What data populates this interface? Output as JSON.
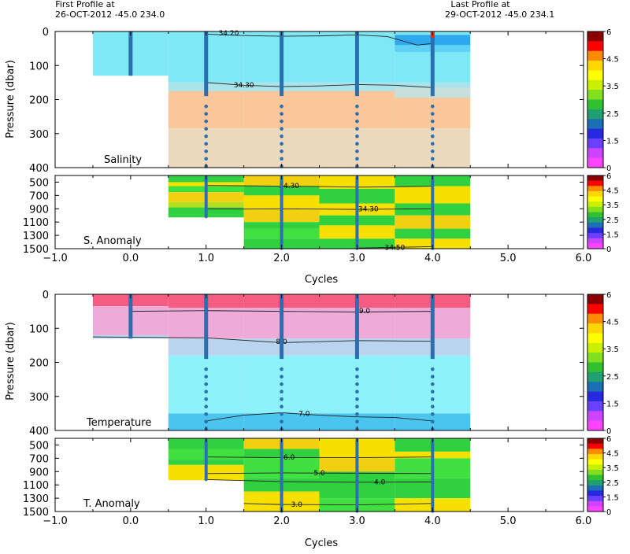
{
  "header": {
    "left_line1": "First Profile at",
    "left_line2": "26-OCT-2012    -45.0  234.0",
    "right_line1": "Last Profile at",
    "right_line2": "29-OCT-2012    -45.0  234.1"
  },
  "colorbar_ticks": [
    "6",
    "4.5",
    "3.5",
    "2.5",
    "1.5",
    "0"
  ],
  "colorbar_colors": [
    "#8b0000",
    "#ff0000",
    "#ff8c00",
    "#ffd700",
    "#ffff00",
    "#c8f000",
    "#80e020",
    "#30c030",
    "#20a070",
    "#1c6fb4",
    "#2828e0",
    "#6a40ff",
    "#cc44ff",
    "#ff44ff"
  ],
  "chart_data": [
    {
      "type": "heatmap",
      "title": "Salinity",
      "ylabel": "Pressure (dbar)",
      "xlim": [
        -1,
        6
      ],
      "ylim": [
        0,
        400
      ],
      "ytick_labels": [
        "0",
        "100",
        "200",
        "300",
        "400"
      ],
      "profile_cycles": [
        0,
        1,
        2,
        3,
        4
      ],
      "profile_max_depth": [
        130,
        400,
        400,
        400,
        400
      ],
      "contours": [
        {
          "label": "34.20",
          "value": 34.2
        },
        {
          "label": "34.30",
          "value": 34.3
        }
      ]
    },
    {
      "type": "heatmap",
      "title": "S. Anomaly",
      "xlim": [
        -1,
        6
      ],
      "ylim": [
        400,
        1500
      ],
      "ytick_labels": [
        "500",
        "700",
        "900",
        "1100",
        "1300",
        "1500"
      ],
      "contours": [
        {
          "label": "34.30",
          "value": 34.3
        },
        {
          "label": "34.50",
          "value": 34.5
        }
      ]
    },
    {
      "type": "heatmap",
      "title": "Temperature",
      "ylabel": "Pressure (dbar)",
      "xlim": [
        -1,
        6
      ],
      "ylim": [
        0,
        400
      ],
      "ytick_labels": [
        "0",
        "100",
        "200",
        "300",
        "400"
      ],
      "contours": [
        {
          "label": "9.0",
          "value": 9.0
        },
        {
          "label": "8.0",
          "value": 8.0
        },
        {
          "label": "7.0",
          "value": 7.0
        }
      ]
    },
    {
      "type": "heatmap",
      "title": "T. Anomaly",
      "xlim": [
        -1,
        6
      ],
      "ylim": [
        400,
        1500
      ],
      "ytick_labels": [
        "500",
        "700",
        "900",
        "1100",
        "1300",
        "1500"
      ],
      "contours": [
        {
          "label": "6.0",
          "value": 6.0
        },
        {
          "label": "5.0",
          "value": 5.0
        },
        {
          "label": "4.0",
          "value": 4.0
        },
        {
          "label": "3.0",
          "value": 3.0
        }
      ]
    }
  ],
  "xaxis": {
    "label": "Cycles",
    "tick_labels": [
      "-1.0",
      "0.0",
      "1.0",
      "2.0",
      "3.0",
      "4.0",
      "5.0",
      "6.0"
    ]
  }
}
